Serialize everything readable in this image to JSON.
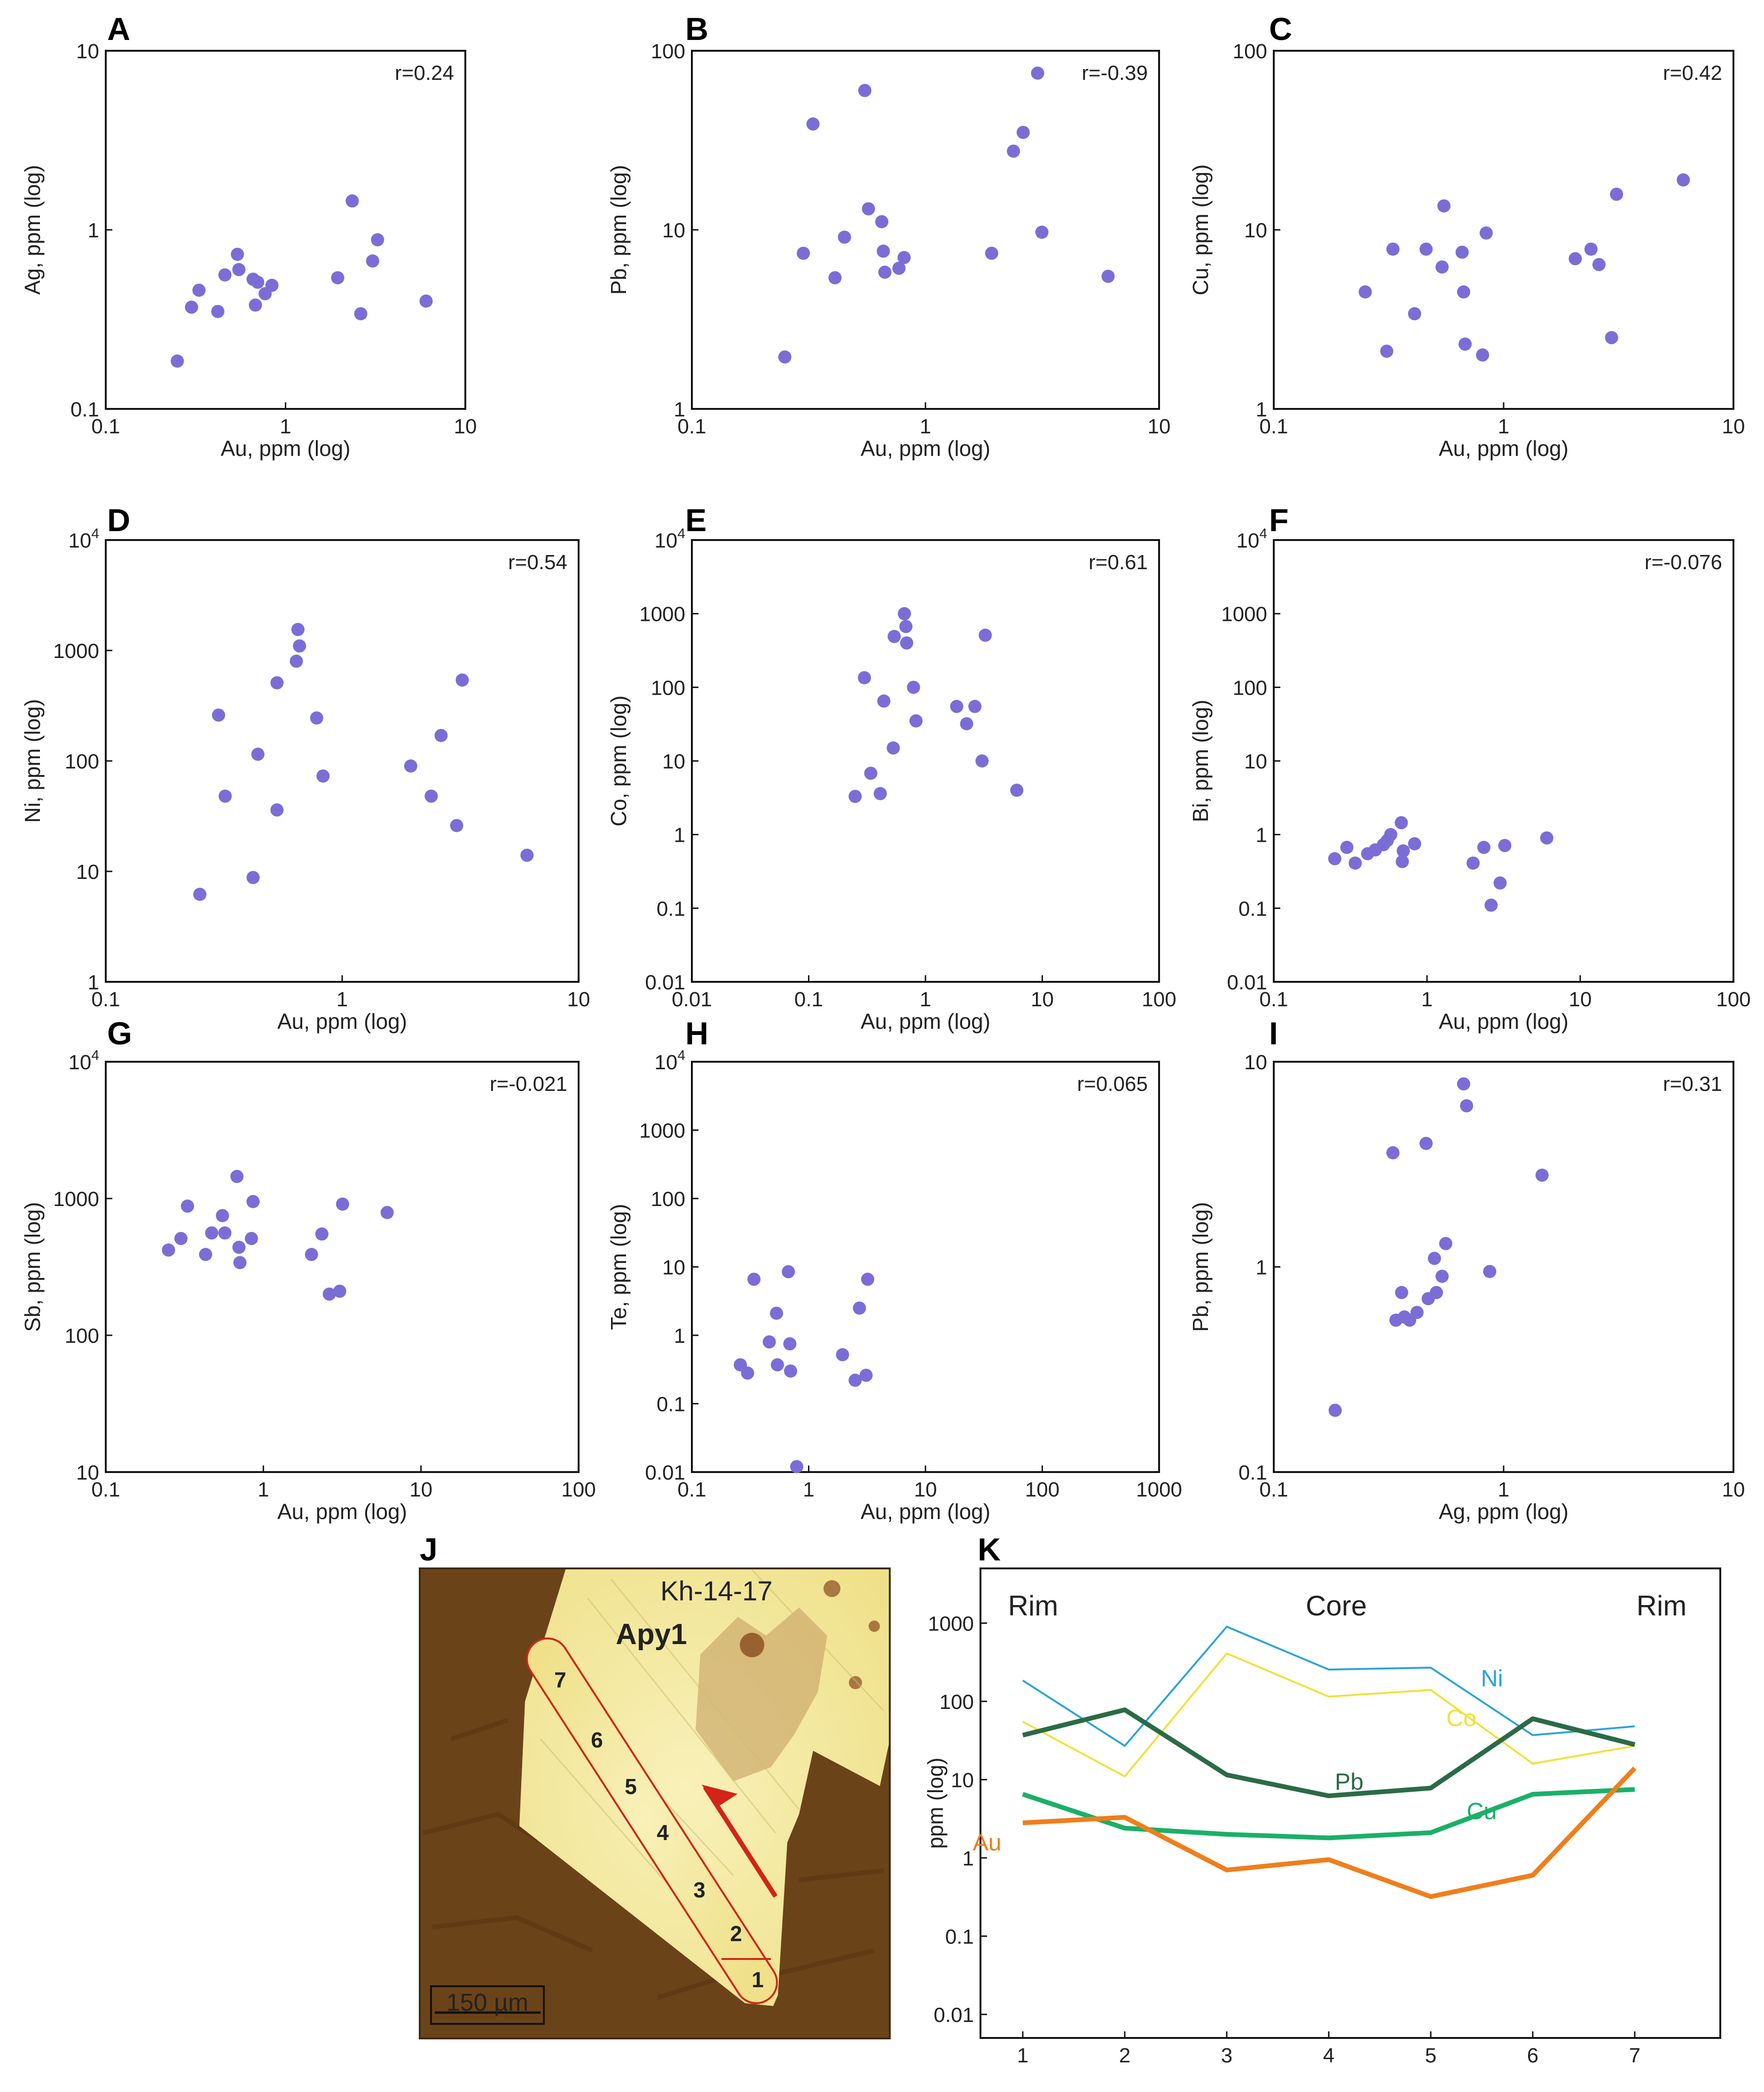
{
  "chart_data": [
    {
      "id": "A",
      "type": "scatter",
      "letter": "A",
      "xlabel": "Au, ppm (log)",
      "ylabel": "Ag, ppm (log)",
      "xscale": "log",
      "yscale": "log",
      "xlim": [
        0.1,
        10
      ],
      "ylim": [
        0.1,
        10
      ],
      "xticks": [
        {
          "v": 0.1,
          "t": "0.1"
        },
        {
          "v": 1,
          "t": "1"
        },
        {
          "v": 10,
          "t": "10"
        }
      ],
      "yticks": [
        {
          "v": 0.1,
          "t": "0.1"
        },
        {
          "v": 1,
          "t": "1"
        },
        {
          "v": 10,
          "t": "10"
        }
      ],
      "r": "r=0.24",
      "points": [
        [
          0.25,
          0.185
        ],
        [
          0.3,
          0.37
        ],
        [
          0.33,
          0.46
        ],
        [
          0.42,
          0.35
        ],
        [
          0.46,
          0.56
        ],
        [
          0.54,
          0.73
        ],
        [
          0.55,
          0.6
        ],
        [
          0.66,
          0.53
        ],
        [
          0.68,
          0.38
        ],
        [
          0.7,
          0.51
        ],
        [
          0.77,
          0.44
        ],
        [
          0.84,
          0.49
        ],
        [
          1.95,
          0.54
        ],
        [
          2.35,
          1.45
        ],
        [
          2.62,
          0.34
        ],
        [
          3.05,
          0.67
        ],
        [
          3.25,
          0.88
        ],
        [
          6.05,
          0.4
        ]
      ]
    },
    {
      "id": "B",
      "type": "scatter",
      "letter": "B",
      "xlabel": "Au, ppm (log)",
      "ylabel": "Pb, ppm (log)",
      "xscale": "log",
      "yscale": "log",
      "xlim": [
        0.1,
        10
      ],
      "ylim": [
        1,
        100
      ],
      "xticks": [
        {
          "v": 0.1,
          "t": "0.1"
        },
        {
          "v": 1,
          "t": "1"
        },
        {
          "v": 10,
          "t": "10"
        }
      ],
      "yticks": [
        {
          "v": 1,
          "t": "1"
        },
        {
          "v": 10,
          "t": "10"
        },
        {
          "v": 100,
          "t": "100"
        }
      ],
      "r": "r=-0.39",
      "points": [
        [
          0.25,
          1.95
        ],
        [
          0.3,
          7.4
        ],
        [
          0.33,
          39
        ],
        [
          0.41,
          5.4
        ],
        [
          0.45,
          9.1
        ],
        [
          0.55,
          60
        ],
        [
          0.57,
          13.1
        ],
        [
          0.65,
          11.1
        ],
        [
          0.66,
          7.6
        ],
        [
          0.67,
          5.8
        ],
        [
          0.77,
          6.1
        ],
        [
          0.81,
          7
        ],
        [
          1.92,
          7.4
        ],
        [
          2.38,
          27.5
        ],
        [
          2.62,
          35
        ],
        [
          3.02,
          75
        ],
        [
          3.15,
          9.7
        ],
        [
          6.05,
          5.5
        ]
      ]
    },
    {
      "id": "C",
      "type": "scatter",
      "letter": "C",
      "xlabel": "Au, ppm (log)",
      "ylabel": "Cu, ppm (log)",
      "xscale": "log",
      "yscale": "log",
      "xlim": [
        0.1,
        10
      ],
      "ylim": [
        1,
        100
      ],
      "xticks": [
        {
          "v": 0.1,
          "t": "0.1"
        },
        {
          "v": 1,
          "t": "1"
        },
        {
          "v": 10,
          "t": "10"
        }
      ],
      "yticks": [
        {
          "v": 1,
          "t": "1"
        },
        {
          "v": 10,
          "t": "10"
        },
        {
          "v": 100,
          "t": "100"
        }
      ],
      "r": "r=0.42",
      "points": [
        [
          0.25,
          4.5
        ],
        [
          0.31,
          2.1
        ],
        [
          0.33,
          7.8
        ],
        [
          0.41,
          3.4
        ],
        [
          0.46,
          7.8
        ],
        [
          0.54,
          6.2
        ],
        [
          0.55,
          13.6
        ],
        [
          0.66,
          7.5
        ],
        [
          0.67,
          4.5
        ],
        [
          0.68,
          2.3
        ],
        [
          0.81,
          2
        ],
        [
          0.84,
          9.6
        ],
        [
          2.05,
          6.9
        ],
        [
          2.4,
          7.8
        ],
        [
          2.6,
          6.4
        ],
        [
          2.95,
          2.5
        ],
        [
          3.1,
          15.8
        ],
        [
          6.05,
          19
        ]
      ]
    },
    {
      "id": "D",
      "type": "scatter",
      "letter": "D",
      "xlabel": "Au, ppm (log)",
      "ylabel": "Ni, ppm (log)",
      "xscale": "log",
      "yscale": "log",
      "xlim": [
        0.1,
        10
      ],
      "ylim": [
        1,
        10000
      ],
      "xticks": [
        {
          "v": 0.1,
          "t": "0.1"
        },
        {
          "v": 1,
          "t": "1"
        },
        {
          "v": 10,
          "t": "10"
        }
      ],
      "yticks": [
        {
          "v": 1,
          "t": "1"
        },
        {
          "v": 10,
          "t": "10"
        },
        {
          "v": 100,
          "t": "100"
        },
        {
          "v": 1000,
          "t": "1000"
        },
        {
          "v": 10000,
          "base": "10",
          "exp": "4"
        }
      ],
      "r": "r=0.54",
      "points": [
        [
          0.25,
          6.2
        ],
        [
          0.3,
          260
        ],
        [
          0.32,
          48
        ],
        [
          0.42,
          8.8
        ],
        [
          0.44,
          115
        ],
        [
          0.53,
          510
        ],
        [
          0.53,
          36
        ],
        [
          0.64,
          800
        ],
        [
          0.65,
          1550
        ],
        [
          0.66,
          1100
        ],
        [
          0.78,
          245
        ],
        [
          0.83,
          73
        ],
        [
          1.95,
          90
        ],
        [
          2.38,
          48
        ],
        [
          2.62,
          170
        ],
        [
          3.05,
          26
        ],
        [
          3.22,
          540
        ],
        [
          6.05,
          14
        ]
      ]
    },
    {
      "id": "E",
      "type": "scatter",
      "letter": "E",
      "xlabel": "Au, ppm (log)",
      "ylabel": "Co, ppm (log)",
      "xscale": "log",
      "yscale": "log",
      "xlim": [
        0.01,
        100
      ],
      "ylim": [
        0.01,
        10000
      ],
      "xticks": [
        {
          "v": 0.01,
          "t": "0.01"
        },
        {
          "v": 0.1,
          "t": "0.1"
        },
        {
          "v": 1,
          "t": "1"
        },
        {
          "v": 10,
          "t": "10"
        },
        {
          "v": 100,
          "t": "100"
        }
      ],
      "yticks": [
        {
          "v": 0.01,
          "t": "0.01"
        },
        {
          "v": 0.1,
          "t": "0.1"
        },
        {
          "v": 1,
          "t": "1"
        },
        {
          "v": 10,
          "t": "10"
        },
        {
          "v": 100,
          "t": "100"
        },
        {
          "v": 1000,
          "t": "1000"
        },
        {
          "v": 10000,
          "base": "10",
          "exp": "4"
        }
      ],
      "r": "r=0.61",
      "points": [
        [
          0.25,
          3.3
        ],
        [
          0.3,
          135
        ],
        [
          0.34,
          6.8
        ],
        [
          0.41,
          3.6
        ],
        [
          0.44,
          65
        ],
        [
          0.53,
          15
        ],
        [
          0.54,
          490
        ],
        [
          0.66,
          1000
        ],
        [
          0.68,
          670
        ],
        [
          0.69,
          400
        ],
        [
          0.79,
          100
        ],
        [
          0.83,
          35
        ],
        [
          1.85,
          55
        ],
        [
          2.25,
          32
        ],
        [
          2.65,
          55
        ],
        [
          3.05,
          10
        ],
        [
          3.25,
          510
        ],
        [
          6.05,
          4
        ]
      ]
    },
    {
      "id": "F",
      "type": "scatter",
      "letter": "F",
      "xlabel": "Au, ppm (log)",
      "ylabel": "Bi, ppm (log)",
      "xscale": "log",
      "yscale": "log",
      "xlim": [
        0.1,
        100
      ],
      "ylim": [
        0.01,
        10000
      ],
      "xticks": [
        {
          "v": 0.1,
          "t": "0.1"
        },
        {
          "v": 1,
          "t": "1"
        },
        {
          "v": 10,
          "t": "10"
        },
        {
          "v": 100,
          "t": "100"
        }
      ],
      "yticks": [
        {
          "v": 0.01,
          "t": "0.01"
        },
        {
          "v": 0.1,
          "t": "0.1"
        },
        {
          "v": 1,
          "t": "1"
        },
        {
          "v": 10,
          "t": "10"
        },
        {
          "v": 100,
          "t": "100"
        },
        {
          "v": 1000,
          "t": "1000"
        },
        {
          "v": 10000,
          "base": "10",
          "exp": "4"
        }
      ],
      "r": "r=-0.076",
      "points": [
        [
          0.25,
          0.47
        ],
        [
          0.3,
          0.67
        ],
        [
          0.34,
          0.41
        ],
        [
          0.41,
          0.55
        ],
        [
          0.46,
          0.62
        ],
        [
          0.52,
          0.73
        ],
        [
          0.55,
          0.83
        ],
        [
          0.58,
          1
        ],
        [
          0.68,
          1.45
        ],
        [
          0.69,
          0.43
        ],
        [
          0.7,
          0.6
        ],
        [
          0.83,
          0.75
        ],
        [
          2.0,
          0.41
        ],
        [
          2.35,
          0.67
        ],
        [
          2.62,
          0.11
        ],
        [
          3.0,
          0.22
        ],
        [
          3.22,
          0.71
        ],
        [
          6.05,
          0.9
        ]
      ]
    },
    {
      "id": "G",
      "type": "scatter",
      "letter": "G",
      "xlabel": "Au, ppm (log)",
      "ylabel": "Sb, ppm (log)",
      "xscale": "log",
      "yscale": "log",
      "xlim": [
        0.1,
        100
      ],
      "ylim": [
        10,
        10000
      ],
      "xticks": [
        {
          "v": 0.1,
          "t": "0.1"
        },
        {
          "v": 1,
          "t": "1"
        },
        {
          "v": 10,
          "t": "10"
        },
        {
          "v": 100,
          "t": "100"
        }
      ],
      "yticks": [
        {
          "v": 10,
          "t": "10"
        },
        {
          "v": 100,
          "t": "100"
        },
        {
          "v": 1000,
          "t": "1000"
        },
        {
          "v": 10000,
          "base": "10",
          "exp": "4"
        }
      ],
      "r": "r=-0.021",
      "points": [
        [
          0.25,
          420
        ],
        [
          0.3,
          510
        ],
        [
          0.33,
          880
        ],
        [
          0.43,
          390
        ],
        [
          0.47,
          560
        ],
        [
          0.55,
          750
        ],
        [
          0.57,
          560
        ],
        [
          0.68,
          1450
        ],
        [
          0.7,
          440
        ],
        [
          0.71,
          340
        ],
        [
          0.84,
          510
        ],
        [
          0.86,
          950
        ],
        [
          2.02,
          390
        ],
        [
          2.35,
          550
        ],
        [
          2.62,
          200
        ],
        [
          3.05,
          210
        ],
        [
          3.18,
          910
        ],
        [
          6.1,
          790
        ]
      ]
    },
    {
      "id": "H",
      "type": "scatter",
      "letter": "H",
      "xlabel": "Au, ppm (log)",
      "ylabel": "Te, ppm (log)",
      "xscale": "log",
      "yscale": "log",
      "xlim": [
        0.1,
        1000
      ],
      "ylim": [
        0.01,
        10000
      ],
      "xticks": [
        {
          "v": 0.1,
          "t": "0.1"
        },
        {
          "v": 1,
          "t": "1"
        },
        {
          "v": 10,
          "t": "10"
        },
        {
          "v": 100,
          "t": "100"
        },
        {
          "v": 1000,
          "t": "1000"
        }
      ],
      "yticks": [
        {
          "v": 0.01,
          "t": "0.01"
        },
        {
          "v": 0.1,
          "t": "0.1"
        },
        {
          "v": 1,
          "t": "1"
        },
        {
          "v": 10,
          "t": "10"
        },
        {
          "v": 100,
          "t": "100"
        },
        {
          "v": 1000,
          "t": "1000"
        },
        {
          "v": 10000,
          "base": "10",
          "exp": "4"
        }
      ],
      "r": "r=0.065",
      "points": [
        [
          0.26,
          0.37
        ],
        [
          0.3,
          0.28
        ],
        [
          0.34,
          6.6
        ],
        [
          0.46,
          0.8
        ],
        [
          0.53,
          2.1
        ],
        [
          0.54,
          0.37
        ],
        [
          0.67,
          8.5
        ],
        [
          0.69,
          0.75
        ],
        [
          0.7,
          0.3
        ],
        [
          0.79,
          0.012
        ],
        [
          1.95,
          0.52
        ],
        [
          2.5,
          0.22
        ],
        [
          2.72,
          2.5
        ],
        [
          3.1,
          0.26
        ],
        [
          3.2,
          6.6
        ]
      ]
    },
    {
      "id": "I",
      "type": "scatter",
      "letter": "I",
      "xlabel": "Ag, ppm (log)",
      "ylabel": "Pb, ppm (log)",
      "xscale": "log",
      "yscale": "log",
      "xlim": [
        0.1,
        10
      ],
      "ylim": [
        0.1,
        10
      ],
      "xticks": [
        {
          "v": 0.1,
          "t": "0.1"
        },
        {
          "v": 1,
          "t": "1"
        },
        {
          "v": 10,
          "t": "10"
        }
      ],
      "yticks": [
        {
          "v": 0.1,
          "t": "0.1"
        },
        {
          "v": 1,
          "t": "1"
        },
        {
          "v": 10,
          "t": "10"
        }
      ],
      "r": "r=0.31",
      "points": [
        [
          0.185,
          0.2
        ],
        [
          0.33,
          3.6
        ],
        [
          0.34,
          0.55
        ],
        [
          0.36,
          0.75
        ],
        [
          0.37,
          0.57
        ],
        [
          0.39,
          0.55
        ],
        [
          0.42,
          0.6
        ],
        [
          0.46,
          4
        ],
        [
          0.47,
          0.7
        ],
        [
          0.5,
          1.1
        ],
        [
          0.51,
          0.75
        ],
        [
          0.54,
          0.9
        ],
        [
          0.56,
          1.3
        ],
        [
          0.67,
          7.8
        ],
        [
          0.69,
          6.1
        ],
        [
          0.87,
          0.95
        ],
        [
          1.47,
          2.8
        ]
      ]
    },
    {
      "id": "K",
      "type": "line",
      "letter": "K",
      "ylabel": "ppm (log)",
      "yscale": "log",
      "ylim": [
        0.005,
        5000
      ],
      "x": [
        1,
        2,
        3,
        4,
        5,
        6,
        7
      ],
      "xticks": [
        {
          "v": 1,
          "t": "1"
        },
        {
          "v": 2,
          "t": "2"
        },
        {
          "v": 3,
          "t": "3"
        },
        {
          "v": 4,
          "t": "4"
        },
        {
          "v": 5,
          "t": "5"
        },
        {
          "v": 6,
          "t": "6"
        },
        {
          "v": 7,
          "t": "7"
        }
      ],
      "yticks": [
        {
          "v": 0.01,
          "t": "0.01"
        },
        {
          "v": 0.1,
          "t": "0.1"
        },
        {
          "v": 1,
          "t": "1"
        },
        {
          "v": 10,
          "t": "10"
        },
        {
          "v": 100,
          "t": "100"
        },
        {
          "v": 1000,
          "t": "1000"
        }
      ],
      "regions": [
        "Rim",
        "Core",
        "Rim"
      ],
      "series": [
        {
          "name": "Ni",
          "color": "#2aa4d6",
          "width": 4,
          "label_at": [
            5.6,
            200
          ],
          "values": [
            185,
            27,
            900,
            255,
            270,
            37,
            48
          ]
        },
        {
          "name": "Co",
          "color": "#f2e03a",
          "width": 4,
          "label_at": [
            5.3,
            62
          ],
          "values": [
            55,
            11,
            410,
            115,
            140,
            16,
            27
          ]
        },
        {
          "name": "Pb",
          "color": "#2a6b45",
          "width": 10,
          "label_at": [
            4.2,
            9.5
          ],
          "values": [
            37,
            78,
            11.5,
            6.2,
            7.8,
            60,
            28
          ]
        },
        {
          "name": "Cu",
          "color": "#1ab068",
          "width": 10,
          "label_at": [
            5.5,
            4
          ],
          "values": [
            6.5,
            2.4,
            2,
            1.8,
            2.1,
            6.5,
            7.5
          ]
        },
        {
          "name": "Au",
          "color": "#f07e1c",
          "width": 10,
          "label_at": [
            0.65,
            1.6
          ],
          "values": [
            2.8,
            3.3,
            0.7,
            0.95,
            0.32,
            0.6,
            14
          ]
        }
      ]
    }
  ],
  "panel_j": {
    "letter": "J",
    "sample": "Kh-14-17",
    "mineral": "Apy1",
    "spots": [
      "1",
      "2",
      "3",
      "4",
      "5",
      "6",
      "7"
    ],
    "scale_bar": "150 µm",
    "colors": {
      "dark_matrix": "#6e4418",
      "grain": "#f1e79c",
      "trace": "#d22418"
    }
  }
}
